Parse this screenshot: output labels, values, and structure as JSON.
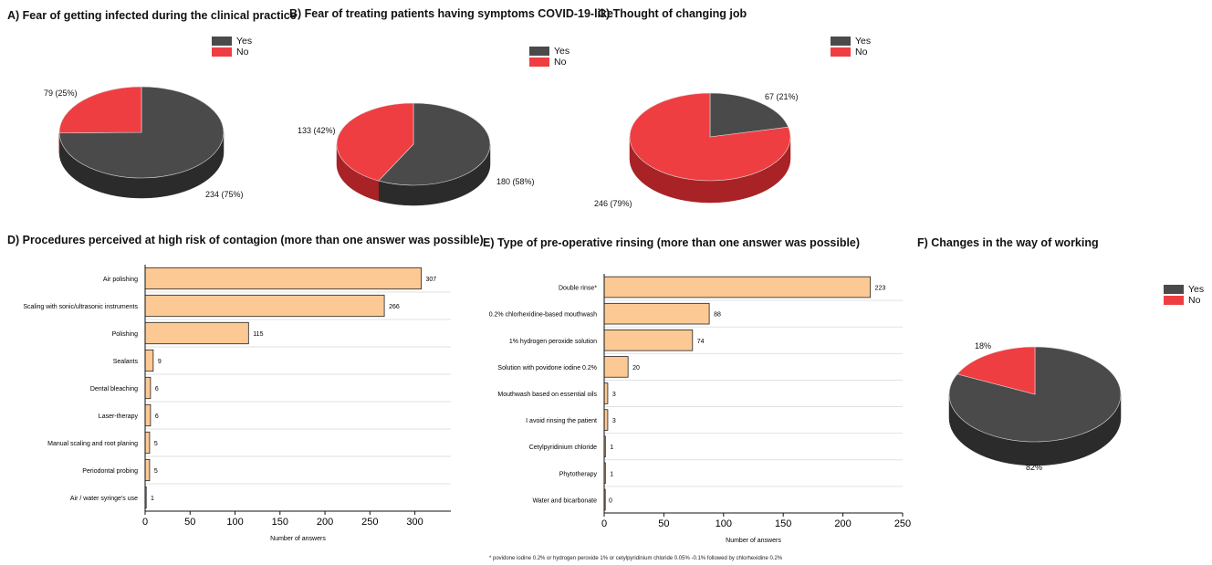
{
  "chart_data": [
    {
      "id": "A",
      "type": "pie",
      "title": "A) Fear of getting infected during the clinical practice",
      "legend": [
        "Yes",
        "No"
      ],
      "slices": [
        {
          "name": "Yes",
          "value": 234,
          "label": "234 (75%)"
        },
        {
          "name": "No",
          "value": 79,
          "label": "79 (25%)"
        }
      ]
    },
    {
      "id": "B",
      "type": "pie",
      "title": "B) Fear of treating patients having symptoms COVID-19-like",
      "legend": [
        "Yes",
        "No"
      ],
      "slices": [
        {
          "name": "Yes",
          "value": 180,
          "label": "180 (58%)"
        },
        {
          "name": "No",
          "value": 133,
          "label": "133 (42%)"
        }
      ]
    },
    {
      "id": "C",
      "type": "pie",
      "title": "C) Thought of changing job",
      "legend": [
        "Yes",
        "No"
      ],
      "slices": [
        {
          "name": "Yes",
          "value": 67,
          "label": "67 (21%)"
        },
        {
          "name": "No",
          "value": 246,
          "label": "246 (79%)"
        }
      ]
    },
    {
      "id": "D",
      "type": "bar",
      "orientation": "horizontal",
      "title": "D) Procedures perceived at high risk of contagion (more than one answer was possible)",
      "xlabel": "Number of answers",
      "xlim": [
        0,
        340
      ],
      "xticks": [
        0,
        50,
        100,
        150,
        200,
        250,
        300
      ],
      "categories": [
        "Air polishing",
        "Scaling with sonic/ultrasonic instruments",
        "Polishing",
        "Sealants",
        "Dental bleaching",
        "Laser-therapy",
        "Manual scaling and root planing",
        "Periodontal probing",
        "Air / water syringe's use"
      ],
      "values": [
        307,
        266,
        115,
        9,
        6,
        6,
        5,
        5,
        1
      ]
    },
    {
      "id": "E",
      "type": "bar",
      "orientation": "horizontal",
      "title": "E) Type of pre-operative rinsing (more than one answer was possible)",
      "xlabel": "Number of answers",
      "xlim": [
        0,
        250
      ],
      "xticks": [
        0,
        50,
        100,
        150,
        200,
        250
      ],
      "categories": [
        "Double rinse*",
        "0.2% chlorhexidine-based mouthwash",
        "1% hydrogen peroxide solution",
        "Solution with povidone iodine 0.2%",
        "Mouthwash based on essential oils",
        "I avoid rinsing the patient",
        "Cetylpyridinium chloride",
        "Phytotherapy",
        "Water and bicarbonate"
      ],
      "values": [
        223,
        88,
        74,
        20,
        3,
        3,
        1,
        1,
        0
      ],
      "footnote": "* povidone iodine 0.2% or hydrogen peroxide 1% or cetylpyridinium chloride 0.05% -0.1% followed by chlorhexidine 0.2%"
    },
    {
      "id": "F",
      "type": "pie",
      "title": "F) Changes in the way of working",
      "legend": [
        "Yes",
        "No"
      ],
      "slices": [
        {
          "name": "Yes",
          "value": 82,
          "label": "82%"
        },
        {
          "name": "No",
          "value": 18,
          "label": "18%"
        }
      ]
    }
  ],
  "colors": {
    "yes": "#4a4a4a",
    "yes_side": "#2b2b2b",
    "no": "#ef3e42",
    "no_side": "#a82226",
    "bar": "#fcc995",
    "bar_edge": "#222222"
  }
}
